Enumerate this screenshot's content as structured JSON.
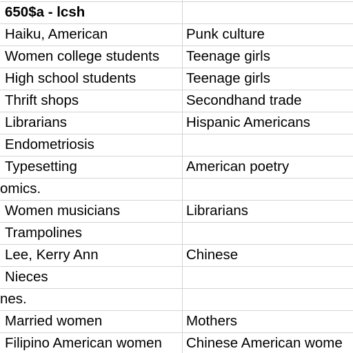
{
  "spreadsheet": {
    "rows": [
      {
        "a": "650$a - lcsh",
        "b": "",
        "header": true
      },
      {
        "a": "Haiku, American",
        "b": "Punk culture"
      },
      {
        "a": "Women college students",
        "b": "Teenage girls"
      },
      {
        "a": "High school students",
        "b": "Teenage girls"
      },
      {
        "a": "Thrift shops",
        "b": "Secondhand trade"
      },
      {
        "a": "Librarians",
        "b": "Hispanic Americans"
      },
      {
        "a": "Endometriosis",
        "b": ""
      },
      {
        "a": "Typesetting",
        "b": "American poetry"
      },
      {
        "a": "omics.",
        "b": "",
        "overflow": true
      },
      {
        "a": "Women musicians",
        "b": "Librarians"
      },
      {
        "a": "Trampolines",
        "b": ""
      },
      {
        "a": "Lee, Kerry Ann",
        "b": "Chinese"
      },
      {
        "a": "Nieces",
        "b": ""
      },
      {
        "a": "nes.",
        "b": "",
        "overflow": true
      },
      {
        "a": "Married women",
        "b": "Mothers"
      },
      {
        "a": "Filipino American women",
        "b": "Chinese American wome"
      }
    ]
  }
}
